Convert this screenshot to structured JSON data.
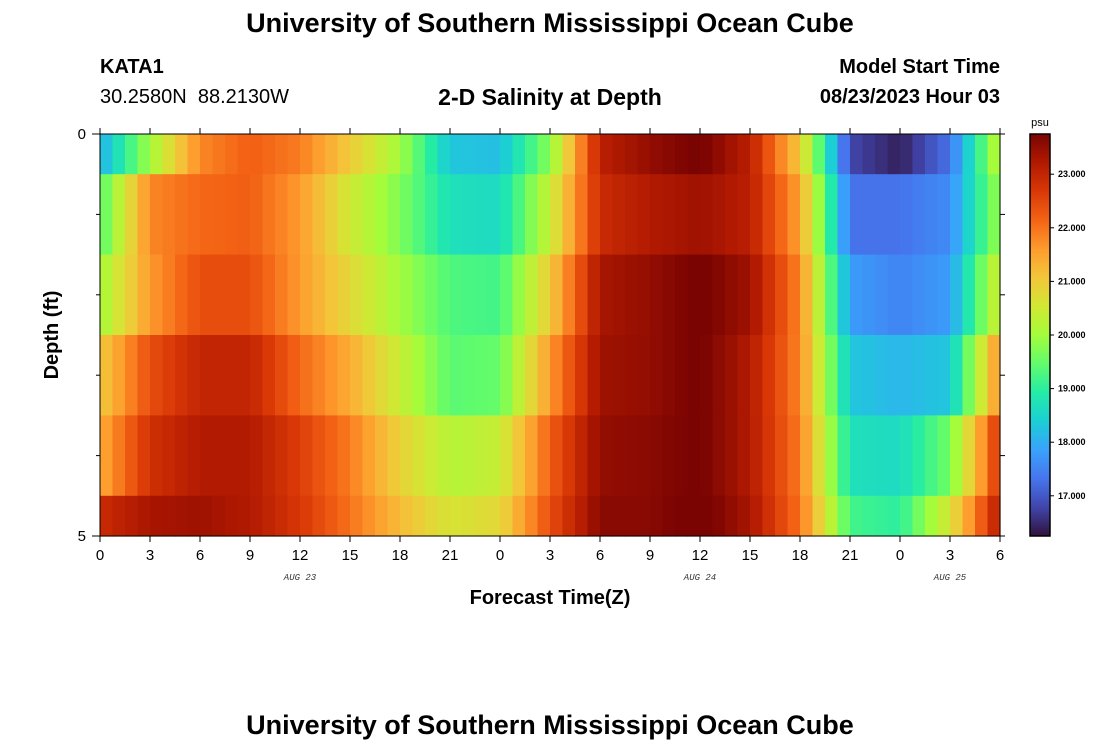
{
  "page": {
    "title_top": "University of Southern Mississippi Ocean Cube",
    "title_bottom": "University of Southern Mississippi Ocean Cube",
    "station_id": "KATA1",
    "station_coords": "30.2580N  88.2130W",
    "plot_title": "2-D Salinity at Depth",
    "model_start_label": "Model Start Time",
    "model_start_value": "08/23/2023 Hour 03"
  },
  "chart_data": {
    "type": "heatmap",
    "title": "2-D Salinity at Depth",
    "xlabel": "Forecast Time(Z)",
    "ylabel": "Depth (ft)",
    "x_range_hours": [
      0,
      54
    ],
    "y_range_ft": [
      0,
      5
    ],
    "y_tick_labels": [
      "0",
      "5"
    ],
    "x_tick_labels": [
      "0",
      "3",
      "6",
      "9",
      "12",
      "15",
      "18",
      "21",
      "0",
      "3",
      "6",
      "9",
      "12",
      "15",
      "18",
      "21",
      "0",
      "3",
      "6"
    ],
    "date_labels": [
      {
        "label": "AUG 23",
        "hour": 12
      },
      {
        "label": "AUG 24",
        "hour": 36
      },
      {
        "label": "AUG 25",
        "hour": 51
      }
    ],
    "colorbar": {
      "unit": "psu",
      "min": 16.25,
      "max": 23.75,
      "tick_labels": [
        "23.000",
        "22.000",
        "21.000",
        "20.000",
        "19.000",
        "18.000",
        "17.000"
      ],
      "tick_values": [
        23,
        22,
        21,
        20,
        19,
        18,
        17
      ],
      "colors": [
        "#30123b",
        "#4145ab",
        "#4675ed",
        "#39a2fc",
        "#1bcfd4",
        "#24eca6",
        "#61fc6c",
        "#a4fc3b",
        "#d1e834",
        "#f3c63a",
        "#fe9b2d",
        "#f36315",
        "#d93806",
        "#b11901",
        "#7a0402"
      ]
    },
    "layers_ft": [
      [
        0,
        0.5
      ],
      [
        0.5,
        1.5
      ],
      [
        1.5,
        2.5
      ],
      [
        2.5,
        3.5
      ],
      [
        3.5,
        4.5
      ],
      [
        4.5,
        5
      ]
    ],
    "hours": [
      0,
      3,
      6,
      9,
      12,
      15,
      18,
      21,
      24,
      27,
      30,
      33,
      36,
      39,
      42,
      45,
      48,
      51,
      54
    ],
    "salinity_psu": [
      [
        18.0,
        20.0,
        21.8,
        22.2,
        21.9,
        21.0,
        20.0,
        18.3,
        18.2,
        19.8,
        23.1,
        23.5,
        23.8,
        23.1,
        21.0,
        16.8,
        16.4,
        17.3,
        20.4
      ],
      [
        19.3,
        21.8,
        22.1,
        22.2,
        21.6,
        20.5,
        19.7,
        18.7,
        18.6,
        20.4,
        22.9,
        23.2,
        23.4,
        23.1,
        21.5,
        17.3,
        17.3,
        17.6,
        20.0
      ],
      [
        20.0,
        21.6,
        22.4,
        22.4,
        21.6,
        20.8,
        20.0,
        19.3,
        19.2,
        21.0,
        23.3,
        23.5,
        23.8,
        23.4,
        21.8,
        17.8,
        17.5,
        17.8,
        20.6
      ],
      [
        21.0,
        22.4,
        23.0,
        23.0,
        22.1,
        21.4,
        20.4,
        19.4,
        19.5,
        21.6,
        23.4,
        23.5,
        23.8,
        23.2,
        21.8,
        18.3,
        18.1,
        18.3,
        21.8
      ],
      [
        21.4,
        22.8,
        23.2,
        23.2,
        22.6,
        21.9,
        20.9,
        20.2,
        20.4,
        22.2,
        23.5,
        23.6,
        23.8,
        23.2,
        21.9,
        18.7,
        18.6,
        19.6,
        22.8
      ],
      [
        22.9,
        23.3,
        23.4,
        23.2,
        22.7,
        22.0,
        21.2,
        20.6,
        20.8,
        22.4,
        23.6,
        23.6,
        23.9,
        23.3,
        22.0,
        19.2,
        19.0,
        20.6,
        23.2
      ]
    ]
  }
}
